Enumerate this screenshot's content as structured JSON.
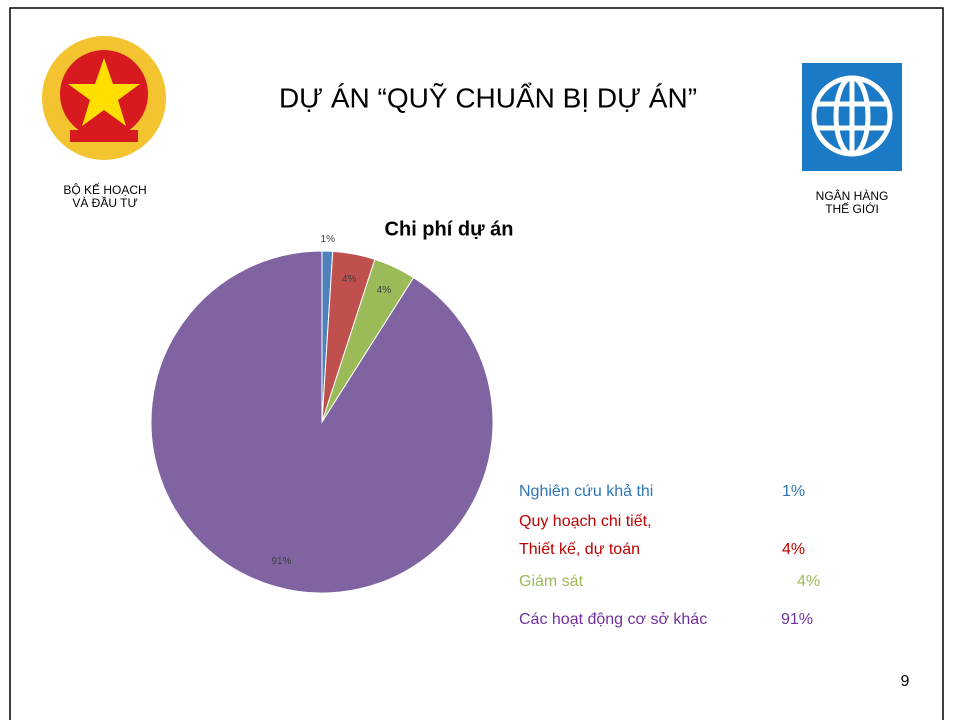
{
  "header": {
    "title": "DỰ ÁN “QUỸ CHUẨN BỊ DỰ ÁN”",
    "left_caption": "BỘ KẾ HOẠCH\nVÀ ĐẦU TƯ",
    "right_caption": "NGÂN HÀNG\nTHẾ GIỚI"
  },
  "page_number": "9",
  "chart_data": {
    "type": "pie",
    "title": "Chi phí dự án",
    "categories": [
      "Nghiên cứu khả thi",
      "Quy hoạch chi tiết,\nThiết kế, dự toán",
      "Giám sát",
      "Các hoạt động cơ sở khác"
    ],
    "values": [
      1,
      4,
      4,
      91
    ],
    "value_labels": [
      "1%",
      "4%",
      "4%",
      "91%"
    ],
    "colors": [
      "#4f81bd",
      "#c0504d",
      "#9bbb59",
      "#8064a2"
    ],
    "legend_colors": [
      "#2e75b6",
      "#c00000",
      "#9bbb59",
      "#7030a0"
    ]
  }
}
